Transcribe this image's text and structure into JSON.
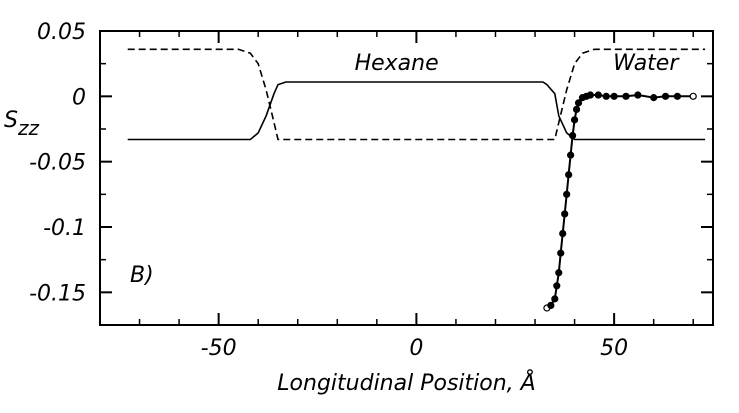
{
  "chart_data": {
    "type": "line",
    "title": "",
    "xlabel": "Longitudinal Position, Å",
    "ylabel_main": "S",
    "ylabel_sub": "zz",
    "xlim": [
      -80,
      75
    ],
    "ylim": [
      -0.175,
      0.05
    ],
    "x_ticks": [
      -50,
      0,
      50
    ],
    "x_tick_labels": [
      "-50",
      "0",
      "50"
    ],
    "y_ticks": [
      0.05,
      0,
      -0.05,
      -0.1,
      -0.15
    ],
    "y_tick_labels": [
      "0.05",
      "0",
      "-0.05",
      "-0.1",
      "-0.15"
    ],
    "grid": false,
    "panel_label": "B)",
    "annotations": [
      {
        "text": "Hexane",
        "x": -5,
        "y": 0.02
      },
      {
        "text": "Water",
        "x": 58,
        "y": 0.02
      }
    ],
    "series": [
      {
        "style": "dashed",
        "x": [
          -73,
          -45,
          -42,
          -40,
          -38,
          -36,
          -35,
          -30,
          -20,
          -10,
          0,
          10,
          20,
          30,
          35,
          36,
          38,
          40,
          42,
          45,
          73
        ],
        "y": [
          0.036,
          0.036,
          0.033,
          0.025,
          0.005,
          -0.02,
          -0.033,
          -0.033,
          -0.033,
          -0.033,
          -0.033,
          -0.033,
          -0.033,
          -0.033,
          -0.033,
          -0.02,
          0.005,
          0.025,
          0.033,
          0.036,
          0.036
        ]
      },
      {
        "style": "solid",
        "x": [
          -73,
          -42,
          -40,
          -38,
          -36,
          -35,
          -33,
          -30,
          -20,
          -10,
          0,
          10,
          20,
          30,
          32,
          33,
          35,
          36,
          38,
          40,
          42,
          73
        ],
        "y": [
          -0.033,
          -0.033,
          -0.028,
          -0.015,
          0.002,
          0.009,
          0.011,
          0.011,
          0.011,
          0.011,
          0.011,
          0.011,
          0.011,
          0.011,
          0.011,
          0.009,
          0.002,
          -0.015,
          -0.028,
          -0.033,
          -0.033,
          -0.033
        ]
      },
      {
        "style": "solid-markers",
        "x": [
          33,
          34,
          35,
          35.5,
          36,
          36.5,
          37,
          37.5,
          38,
          38.5,
          39,
          39.5,
          40,
          40.5,
          41,
          42,
          43,
          44,
          46,
          48,
          50,
          53,
          56,
          60,
          63,
          66,
          70
        ],
        "y": [
          -0.162,
          -0.16,
          -0.155,
          -0.145,
          -0.135,
          -0.12,
          -0.105,
          -0.09,
          -0.075,
          -0.06,
          -0.045,
          -0.03,
          -0.018,
          -0.01,
          -0.005,
          -0.001,
          0,
          0.001,
          0.001,
          0,
          0,
          0,
          0.001,
          -0.001,
          0,
          0,
          0
        ]
      }
    ]
  }
}
